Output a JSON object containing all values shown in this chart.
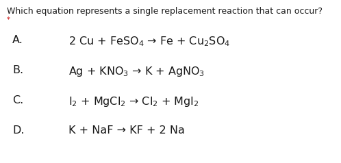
{
  "title": "Which equation represents a single replacement reaction that can occur?",
  "asterisk": "*",
  "bg_color": "#ffffff",
  "text_color": "#1a1a1a",
  "asterisk_color": "#cc0000",
  "title_fontsize": 9.0,
  "label_fontsize": 11.5,
  "eq_fontsize": 11.5,
  "options": [
    {
      "label": "A.",
      "equation": "2 Cu + FeSO$_4$ → Fe + Cu$_2$SO$_4$"
    },
    {
      "label": "B.",
      "equation": "Ag + KNO$_3$ → K + AgNO$_3$"
    },
    {
      "label": "C.",
      "equation": "I$_2$ + MgCl$_2$ → Cl$_2$ + MgI$_2$"
    },
    {
      "label": "D.",
      "equation": "K + NaF → KF + 2 Na"
    }
  ]
}
